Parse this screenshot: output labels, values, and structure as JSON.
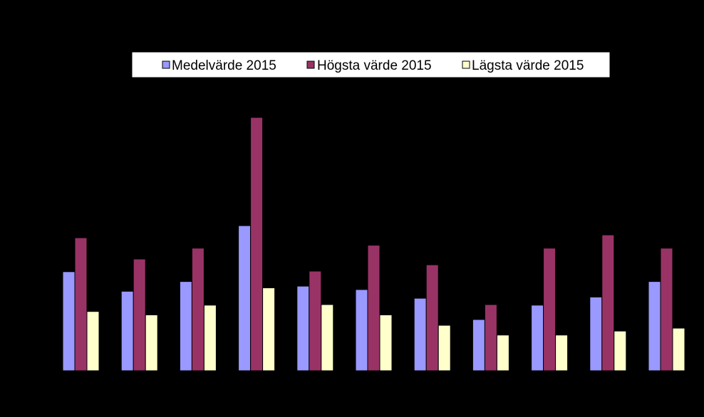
{
  "chart_data": {
    "type": "bar",
    "title": "",
    "xlabel": "",
    "ylabel": "",
    "ylim": [
      0,
      44
    ],
    "categories": [
      "",
      "",
      "",
      "",
      "",
      "",
      "",
      "",
      "",
      "",
      ""
    ],
    "series": [
      {
        "name": "Medelvärde 2015",
        "color": "#9999FF",
        "values": [
          17.2,
          13.8,
          15.5,
          25.2,
          14.7,
          14.1,
          12.6,
          8.9,
          11.4,
          12.8,
          15.5
        ]
      },
      {
        "name": "Högsta värde 2015",
        "color": "#993366",
        "values": [
          23.1,
          19.4,
          21.3,
          44.0,
          17.3,
          21.8,
          18.4,
          11.5,
          21.3,
          23.6,
          21.3
        ]
      },
      {
        "name": "Lägsta värde 2015",
        "color": "#FFFFCC",
        "values": [
          10.3,
          9.7,
          11.4,
          14.4,
          11.5,
          9.7,
          7.9,
          6.2,
          6.2,
          6.9,
          7.4
        ]
      }
    ],
    "legend_position": "top",
    "grid": false
  }
}
